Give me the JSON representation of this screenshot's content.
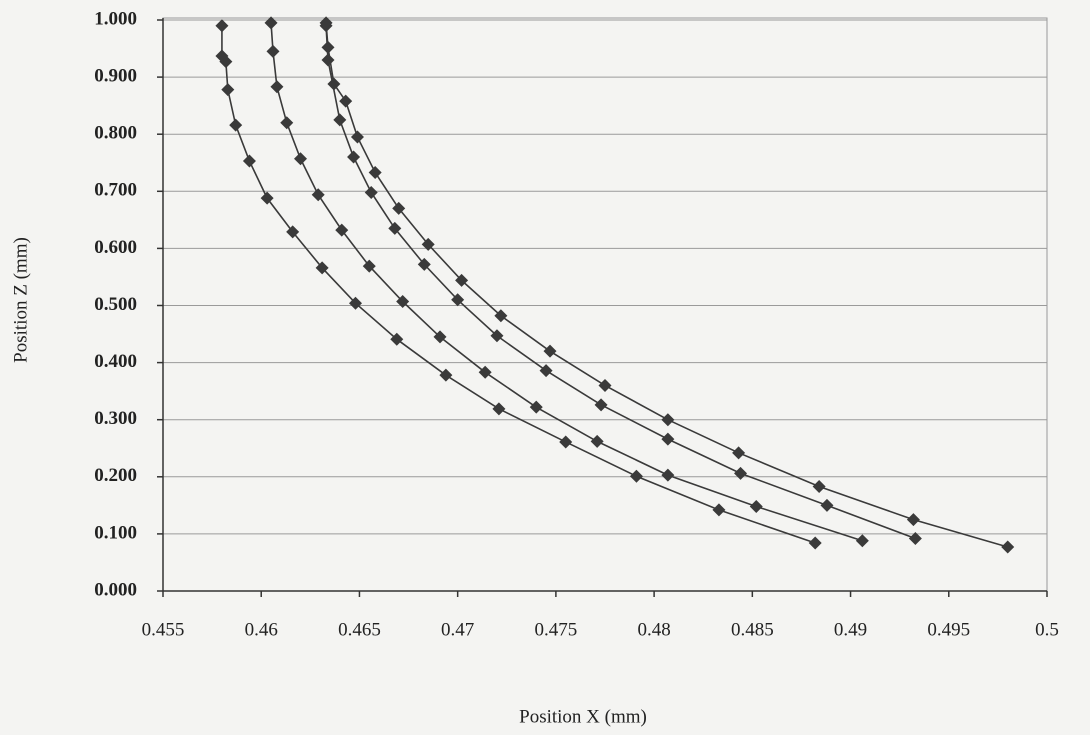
{
  "chart_data": {
    "type": "line",
    "x_label": "Position X  (mm)",
    "y_label": "Position Z  (mm)",
    "xlim": [
      0.455,
      0.5
    ],
    "xticks": [
      0.455,
      0.46,
      0.465,
      0.47,
      0.475,
      0.48,
      0.485,
      0.49,
      0.495,
      0.5
    ],
    "ylim": [
      0,
      1
    ],
    "yticks": [
      {
        "value": 0,
        "label": "0.000"
      },
      {
        "value": 0.1,
        "label": "0.100"
      },
      {
        "value": 0.2,
        "label": "0.200"
      },
      {
        "value": 0.3,
        "label": "0.300"
      },
      {
        "value": 0.4,
        "label": "0.400"
      },
      {
        "value": 0.5,
        "label": "0.500"
      },
      {
        "value": 0.6,
        "label": "0.600"
      },
      {
        "value": 0.7,
        "label": "0.700"
      },
      {
        "value": 0.8,
        "label": "0.800"
      },
      {
        "value": 0.9,
        "label": "0.900"
      },
      {
        "value": 1,
        "label": "1.000"
      }
    ],
    "grid": true,
    "series": [
      {
        "color": "#3a3a3a",
        "x": [
          0.458,
          0.458,
          0.4582,
          0.4583,
          0.4587,
          0.4594,
          0.4603,
          0.4616,
          0.4631,
          0.4648,
          0.4669,
          0.4694,
          0.4721,
          0.4755,
          0.4791,
          0.4833,
          0.4882
        ],
        "values": [
          0.99,
          0.937,
          0.927,
          0.878,
          0.816,
          0.753,
          0.688,
          0.629,
          0.566,
          0.504,
          0.441,
          0.378,
          0.319,
          0.261,
          0.201,
          0.142,
          0.084
        ]
      },
      {
        "color": "#3a3a3a",
        "x": [
          0.4605,
          0.4606,
          0.4608,
          0.4613,
          0.462,
          0.4629,
          0.4641,
          0.4655,
          0.4672,
          0.4691,
          0.4714,
          0.474,
          0.4771,
          0.4807,
          0.4852,
          0.4906
        ],
        "values": [
          0.995,
          0.945,
          0.883,
          0.82,
          0.757,
          0.694,
          0.632,
          0.569,
          0.507,
          0.445,
          0.383,
          0.322,
          0.262,
          0.203,
          0.148,
          0.088
        ]
      },
      {
        "color": "#3a3a3a",
        "x": [
          0.4633,
          0.4634,
          0.464,
          0.4647,
          0.4656,
          0.4668,
          0.4683,
          0.47,
          0.472,
          0.4745,
          0.4773,
          0.4807,
          0.4844,
          0.4888,
          0.4933
        ],
        "values": [
          0.99,
          0.93,
          0.825,
          0.76,
          0.698,
          0.635,
          0.572,
          0.51,
          0.447,
          0.386,
          0.326,
          0.266,
          0.206,
          0.15,
          0.092
        ]
      },
      {
        "color": "#3a3a3a",
        "x": [
          0.4633,
          0.4634,
          0.4637,
          0.4643,
          0.4649,
          0.4658,
          0.467,
          0.4685,
          0.4702,
          0.4722,
          0.4747,
          0.4775,
          0.4807,
          0.4843,
          0.4884,
          0.4932,
          0.498
        ],
        "values": [
          0.995,
          0.952,
          0.888,
          0.858,
          0.795,
          0.733,
          0.67,
          0.607,
          0.544,
          0.482,
          0.42,
          0.36,
          0.3,
          0.242,
          0.183,
          0.125,
          0.077
        ]
      }
    ]
  }
}
